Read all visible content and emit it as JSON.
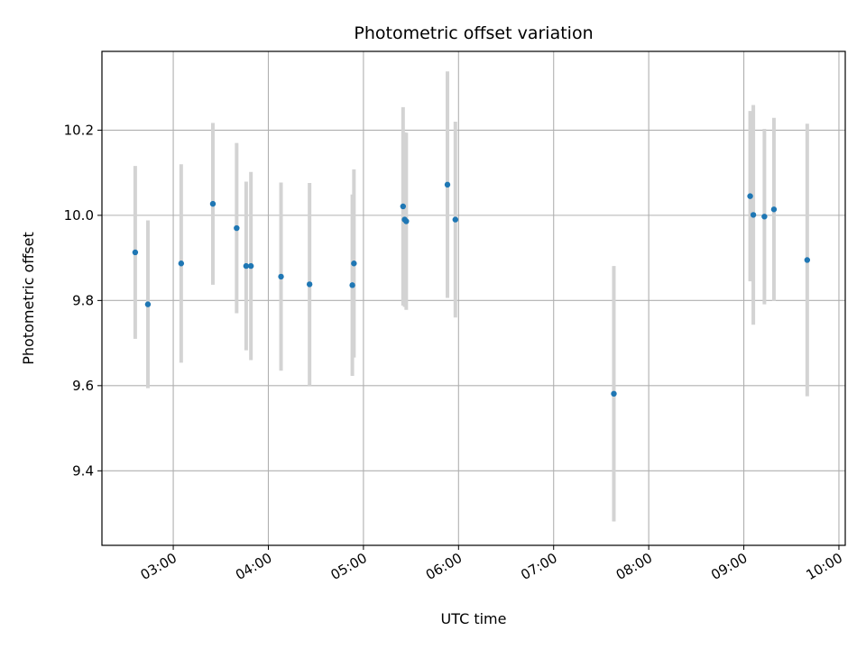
{
  "chart_data": {
    "type": "scatter",
    "title": "Photometric offset variation",
    "xlabel": "UTC time",
    "ylabel": "Photometric offset",
    "grid": true,
    "xlim": [
      "02:15",
      "10:04"
    ],
    "ylim": [
      9.225,
      10.385
    ],
    "x_ticks": [
      "03:00",
      "04:00",
      "05:00",
      "06:00",
      "07:00",
      "08:00",
      "09:00",
      "10:00"
    ],
    "y_ticks": [
      9.4,
      9.6,
      9.8,
      10.0,
      10.2
    ],
    "y_tick_labels": [
      "9.4",
      "9.6",
      "9.8",
      "10.0",
      "10.2"
    ],
    "colors": {
      "point": "#1f77b4",
      "errorbar": "#d3d3d3",
      "grid": "#b0b0b0"
    },
    "points": [
      {
        "x": "02:36",
        "y": 9.913,
        "err": 0.203
      },
      {
        "x": "02:44",
        "y": 9.791,
        "err": 0.197
      },
      {
        "x": "03:05",
        "y": 9.887,
        "err": 0.233
      },
      {
        "x": "03:25",
        "y": 10.027,
        "err": 0.19
      },
      {
        "x": "03:40",
        "y": 9.97,
        "err": 0.2
      },
      {
        "x": "03:46",
        "y": 9.881,
        "err": 0.198
      },
      {
        "x": "03:49",
        "y": 9.881,
        "err": 0.221
      },
      {
        "x": "04:08",
        "y": 9.856,
        "err": 0.221
      },
      {
        "x": "04:26",
        "y": 9.838,
        "err": 0.238
      },
      {
        "x": "04:53",
        "y": 9.836,
        "err": 0.213
      },
      {
        "x": "04:54",
        "y": 9.887,
        "err": 0.221
      },
      {
        "x": "05:25",
        "y": 10.021,
        "err": 0.233
      },
      {
        "x": "05:26",
        "y": 9.99,
        "err": 0.205
      },
      {
        "x": "05:27",
        "y": 9.986,
        "err": 0.208
      },
      {
        "x": "05:53",
        "y": 10.072,
        "err": 0.266
      },
      {
        "x": "05:58",
        "y": 9.99,
        "err": 0.23
      },
      {
        "x": "07:38",
        "y": 9.581,
        "err": 0.3
      },
      {
        "x": "09:04",
        "y": 10.045,
        "err": 0.2
      },
      {
        "x": "09:06",
        "y": 10.001,
        "err": 0.258
      },
      {
        "x": "09:13",
        "y": 9.997,
        "err": 0.206
      },
      {
        "x": "09:19",
        "y": 10.014,
        "err": 0.215
      },
      {
        "x": "09:40",
        "y": 9.895,
        "err": 0.32
      }
    ]
  }
}
